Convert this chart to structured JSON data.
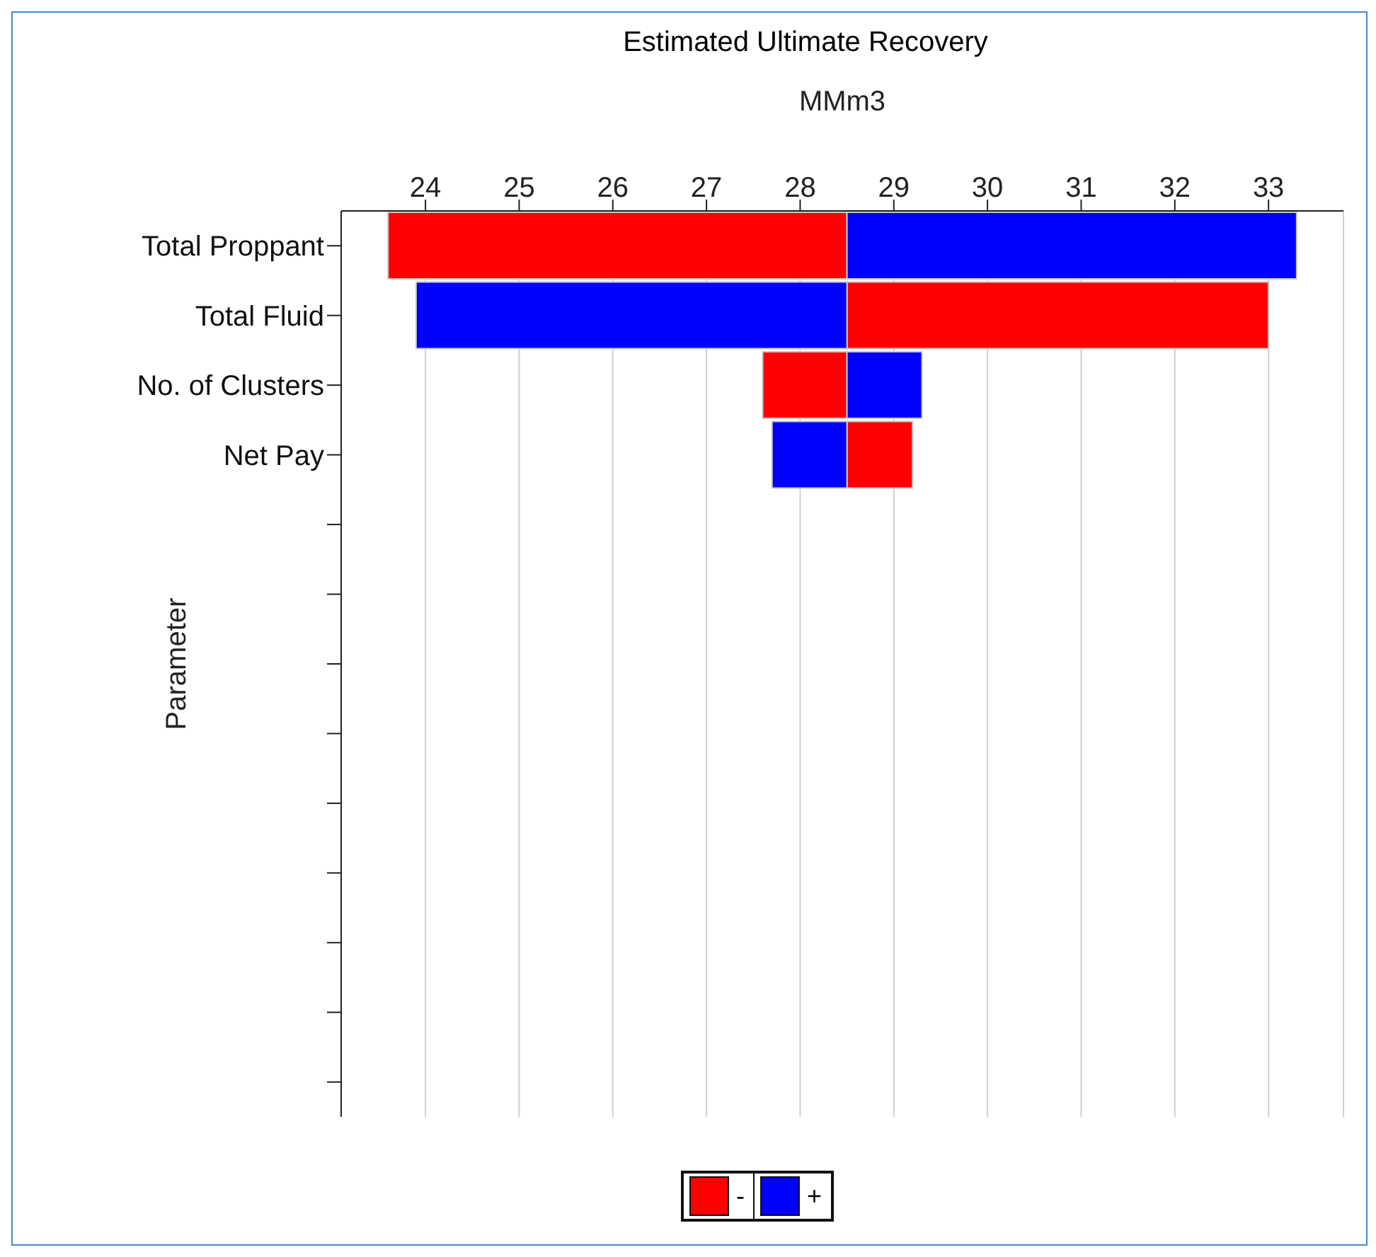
{
  "chart_data": {
    "type": "bar",
    "orientation": "horizontal",
    "title": "Estimated Ultimate Recovery",
    "xlabel": "MMm3",
    "ylabel": "Parameter",
    "categories": [
      "Total Proppant",
      "Total Fluid",
      "No. of Clusters",
      "Net Pay",
      null,
      null,
      null,
      null,
      null,
      null,
      null,
      null,
      null
    ],
    "series": [
      {
        "name": "-",
        "color": "#ff0000",
        "base": [
          23.6,
          28.5,
          27.6,
          28.5,
          null,
          null,
          null,
          null,
          null,
          null,
          null,
          null,
          null
        ],
        "values": [
          4.9,
          4.5,
          0.9,
          0.7,
          null,
          null,
          null,
          null,
          null,
          null,
          null,
          null,
          null
        ]
      },
      {
        "name": "+",
        "color": "#0000ff",
        "base": [
          28.5,
          23.9,
          28.5,
          27.7,
          null,
          null,
          null,
          null,
          null,
          null,
          null,
          null,
          null
        ],
        "values": [
          4.8,
          4.6,
          0.8,
          0.8,
          null,
          null,
          null,
          null,
          null,
          null,
          null,
          null,
          null
        ]
      }
    ],
    "xlim": [
      23.1,
      33.8
    ],
    "xticks": [
      24,
      25,
      26,
      27,
      28,
      29,
      30,
      31,
      32,
      33
    ],
    "grid": "x",
    "legend": "bottom"
  }
}
